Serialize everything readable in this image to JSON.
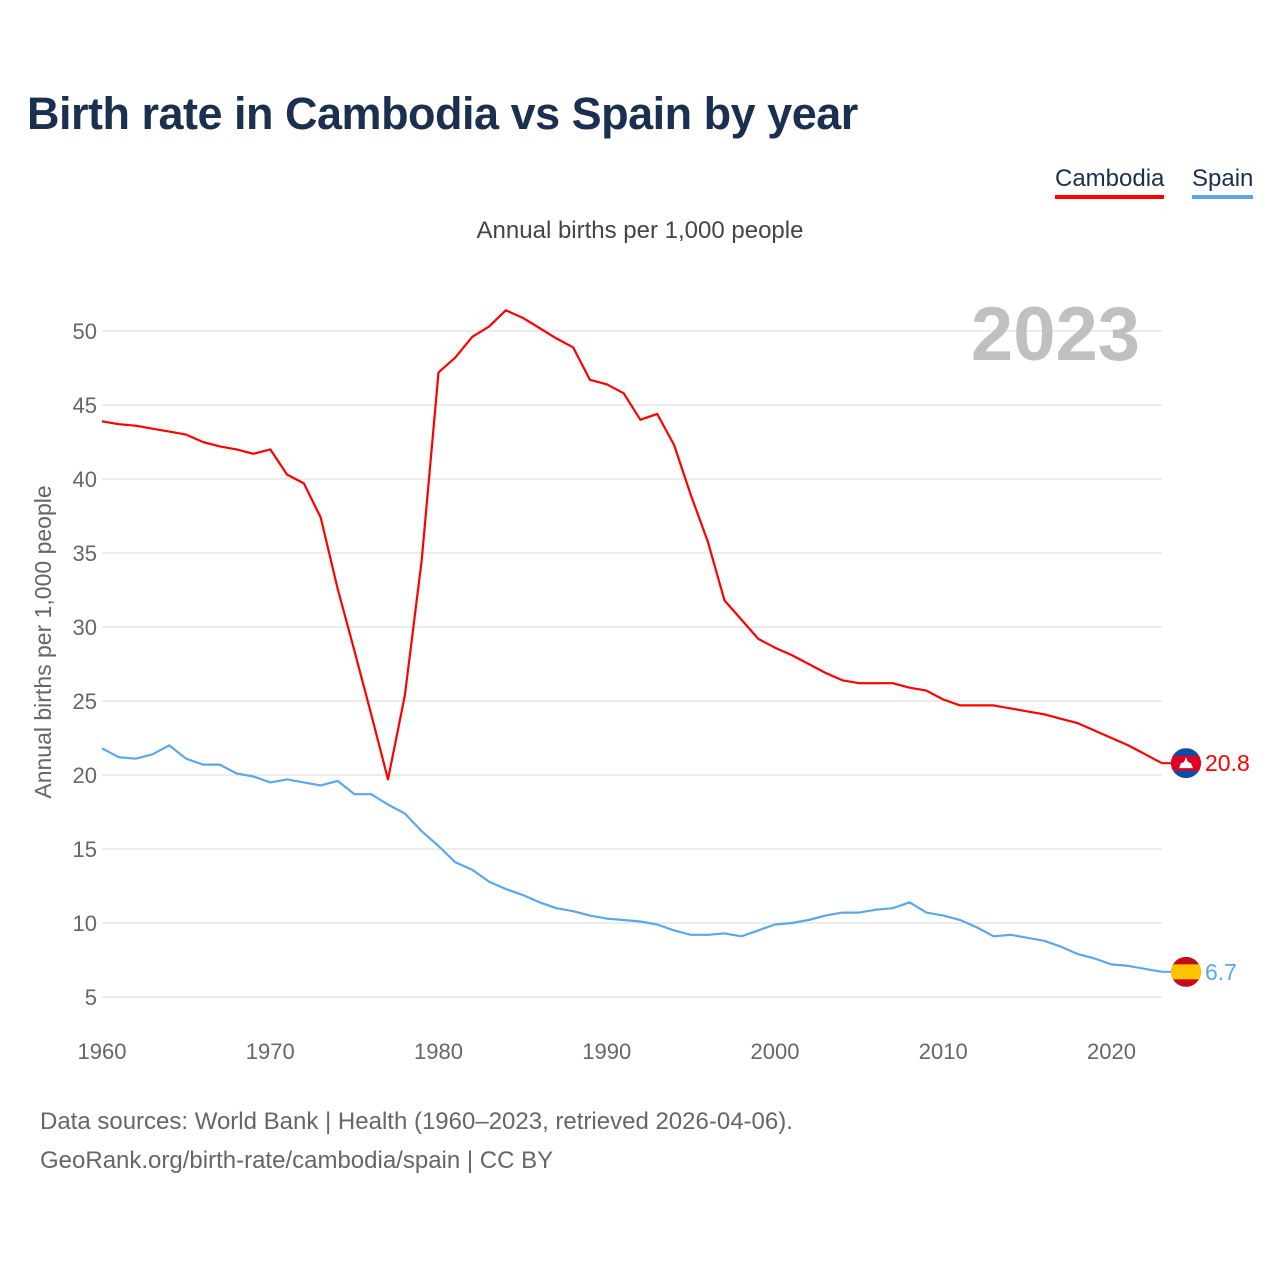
{
  "title": "Birth rate in Cambodia vs Spain by year",
  "legend": [
    {
      "label": "Cambodia",
      "color": "#ff0000"
    },
    {
      "label": "Spain",
      "color": "#5ba7ea"
    }
  ],
  "footer": {
    "source": "Data sources: World Bank | Health (1960–2023, retrieved 2026-04-06).",
    "url": "GeoRank.org/birth-rate/cambodia/spain | CC BY"
  },
  "chart_data": {
    "type": "line",
    "title": "Birth rate in Cambodia vs Spain by year",
    "subtitle": "Annual births per 1,000 people",
    "xlabel": "",
    "ylabel": "Annual births per 1,000 people",
    "year_watermark": "2023",
    "xlim": [
      1960,
      2023
    ],
    "ylim": [
      5,
      50
    ],
    "xticks": [
      1960,
      1970,
      1980,
      1990,
      2000,
      2010,
      2020
    ],
    "yticks": [
      5,
      10,
      15,
      20,
      25,
      30,
      35,
      40,
      45,
      50
    ],
    "grid": true,
    "legend_position": "top-right",
    "x": [
      1960,
      1961,
      1962,
      1963,
      1964,
      1965,
      1966,
      1967,
      1968,
      1969,
      1970,
      1971,
      1972,
      1973,
      1974,
      1975,
      1976,
      1977,
      1978,
      1979,
      1980,
      1981,
      1982,
      1983,
      1984,
      1985,
      1986,
      1987,
      1988,
      1989,
      1990,
      1991,
      1992,
      1993,
      1994,
      1995,
      1996,
      1997,
      1998,
      1999,
      2000,
      2001,
      2002,
      2003,
      2004,
      2005,
      2006,
      2007,
      2008,
      2009,
      2010,
      2011,
      2012,
      2013,
      2014,
      2015,
      2016,
      2017,
      2018,
      2019,
      2020,
      2021,
      2022,
      2023
    ],
    "series": [
      {
        "name": "Cambodia",
        "color": "#ff0000",
        "end_label": "20.8",
        "flag": "cambodia-flag",
        "values": [
          43.9,
          43.7,
          43.6,
          43.4,
          43.2,
          43.0,
          42.5,
          42.2,
          42.0,
          41.7,
          42.0,
          40.3,
          39.7,
          37.4,
          32.6,
          28.4,
          24.1,
          19.7,
          25.4,
          34.5,
          47.2,
          48.2,
          49.6,
          50.3,
          51.4,
          50.9,
          50.2,
          49.5,
          48.9,
          46.7,
          46.4,
          45.8,
          44.0,
          44.4,
          42.3,
          38.9,
          35.8,
          31.8,
          30.5,
          29.2,
          28.6,
          28.1,
          27.5,
          26.9,
          26.4,
          26.2,
          26.2,
          26.2,
          25.9,
          25.7,
          25.1,
          24.7,
          24.7,
          24.7,
          24.5,
          24.3,
          24.1,
          23.8,
          23.5,
          23.0,
          22.5,
          22.0,
          21.4,
          20.8
        ]
      },
      {
        "name": "Spain",
        "color": "#5ba7ea",
        "end_label": "6.7",
        "flag": "spain-flag",
        "values": [
          21.8,
          21.2,
          21.1,
          21.4,
          22.0,
          21.1,
          20.7,
          20.7,
          20.1,
          19.9,
          19.5,
          19.7,
          19.5,
          19.3,
          19.6,
          18.7,
          18.7,
          18.0,
          17.4,
          16.2,
          15.2,
          14.1,
          13.6,
          12.8,
          12.3,
          11.9,
          11.4,
          11.0,
          10.8,
          10.5,
          10.3,
          10.2,
          10.1,
          9.9,
          9.5,
          9.2,
          9.2,
          9.3,
          9.1,
          9.5,
          9.9,
          10.0,
          10.2,
          10.5,
          10.7,
          10.7,
          10.9,
          11.0,
          11.4,
          10.7,
          10.5,
          10.2,
          9.7,
          9.1,
          9.2,
          9.0,
          8.8,
          8.4,
          7.9,
          7.6,
          7.2,
          7.1,
          6.9,
          6.7
        ]
      }
    ]
  }
}
